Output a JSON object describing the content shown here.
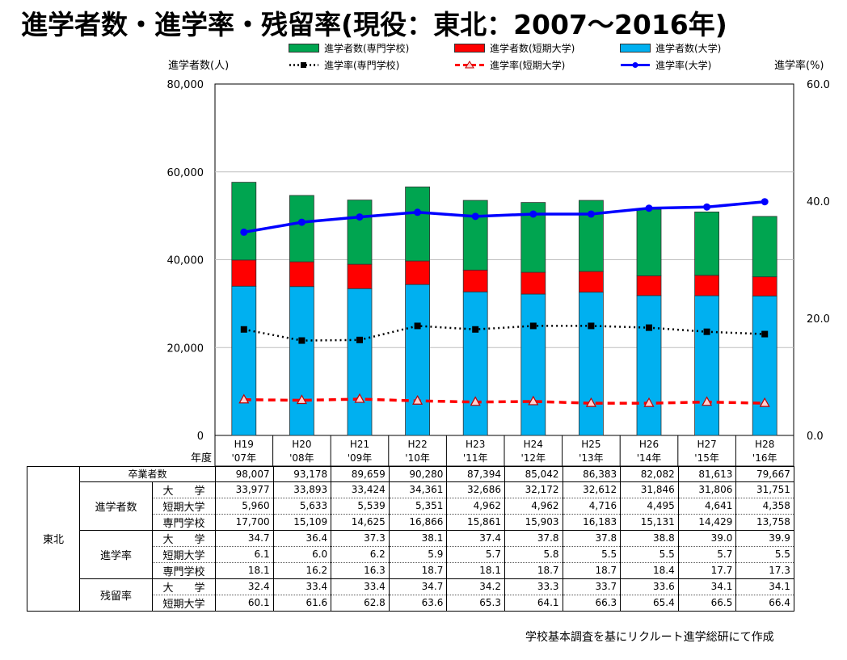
{
  "title": "進学者数・進学率・残留率(現役：東北：2007～2016年)",
  "y_left_label": "進学者数(人)",
  "y_right_label": "進学率(%)",
  "year_label": "年度",
  "legend": [
    {
      "label": "進学者数(専門学校)",
      "kind": "bar",
      "color": "#00a550"
    },
    {
      "label": "進学者数(短期大学)",
      "kind": "bar",
      "color": "#ff0000"
    },
    {
      "label": "進学者数(大学)",
      "kind": "bar",
      "color": "#00b0f0"
    },
    {
      "label": "進学率(専門学校)",
      "kind": "dotted-line",
      "color": "#000000"
    },
    {
      "label": "進学率(短期大学)",
      "kind": "dashed-line",
      "color": "#ff0000"
    },
    {
      "label": "進学率(大学)",
      "kind": "solid-line",
      "color": "#0000ff"
    }
  ],
  "chart_data": {
    "type": "bar",
    "stacked": true,
    "categories": [
      "H19 '07年",
      "H20 '08年",
      "H21 '09年",
      "H22 '10年",
      "H23 '11年",
      "H24 '12年",
      "H25 '13年",
      "H26 '14年",
      "H27 '15年",
      "H28 '16年"
    ],
    "category_top": [
      "H19",
      "H20",
      "H21",
      "H22",
      "H23",
      "H24",
      "H25",
      "H26",
      "H27",
      "H28"
    ],
    "category_bottom": [
      "'07年",
      "'08年",
      "'09年",
      "'10年",
      "'11年",
      "'12年",
      "'13年",
      "'14年",
      "'15年",
      "'16年"
    ],
    "series": [
      {
        "name": "進学者数(大学)",
        "type": "bar",
        "axis": "left",
        "color": "#00b0f0",
        "values": [
          33977,
          33893,
          33424,
          34361,
          32686,
          32172,
          32612,
          31846,
          31806,
          31751
        ]
      },
      {
        "name": "進学者数(短期大学)",
        "type": "bar",
        "axis": "left",
        "color": "#ff0000",
        "values": [
          5960,
          5633,
          5539,
          5351,
          4962,
          4962,
          4716,
          4495,
          4641,
          4358
        ]
      },
      {
        "name": "進学者数(専門学校)",
        "type": "bar",
        "axis": "left",
        "color": "#00a550",
        "values": [
          17700,
          15109,
          14625,
          16866,
          15861,
          15903,
          16183,
          15131,
          14429,
          13758
        ]
      },
      {
        "name": "進学率(大学)",
        "type": "line",
        "axis": "right",
        "color": "#0000ff",
        "values": [
          34.7,
          36.4,
          37.3,
          38.1,
          37.4,
          37.8,
          37.8,
          38.8,
          39.0,
          39.9
        ]
      },
      {
        "name": "進学率(短期大学)",
        "type": "line",
        "axis": "right",
        "color": "#ff0000",
        "values": [
          6.1,
          6.0,
          6.2,
          5.9,
          5.7,
          5.8,
          5.5,
          5.5,
          5.7,
          5.5
        ]
      },
      {
        "name": "進学率(専門学校)",
        "type": "line",
        "axis": "right",
        "color": "#000000",
        "values": [
          18.1,
          16.2,
          16.3,
          18.7,
          18.1,
          18.7,
          18.7,
          18.4,
          17.7,
          17.3
        ]
      }
    ],
    "ylim_left": [
      0,
      80000
    ],
    "ylim_right": [
      0,
      60
    ],
    "yticks_left": [
      "0",
      "20,000",
      "40,000",
      "60,000",
      "80,000"
    ],
    "yticks_right": [
      "0.0",
      "20.0",
      "40.0",
      "60.0"
    ],
    "grid": true,
    "legend_position": "top"
  },
  "table": {
    "region": "東北",
    "graduates_label": "卒業者数",
    "graduates": [
      "98,007",
      "93,178",
      "89,659",
      "90,280",
      "87,394",
      "85,042",
      "86,383",
      "82,082",
      "81,613",
      "79,667"
    ],
    "groups": [
      {
        "label": "進学者数",
        "rows": [
          {
            "label": "大　　学",
            "values": [
              "33,977",
              "33,893",
              "33,424",
              "34,361",
              "32,686",
              "32,172",
              "32,612",
              "31,846",
              "31,806",
              "31,751"
            ]
          },
          {
            "label": "短期大学",
            "values": [
              "5,960",
              "5,633",
              "5,539",
              "5,351",
              "4,962",
              "4,962",
              "4,716",
              "4,495",
              "4,641",
              "4,358"
            ]
          },
          {
            "label": "専門学校",
            "values": [
              "17,700",
              "15,109",
              "14,625",
              "16,866",
              "15,861",
              "15,903",
              "16,183",
              "15,131",
              "14,429",
              "13,758"
            ]
          }
        ]
      },
      {
        "label": "進学率",
        "rows": [
          {
            "label": "大　　学",
            "values": [
              "34.7",
              "36.4",
              "37.3",
              "38.1",
              "37.4",
              "37.8",
              "37.8",
              "38.8",
              "39.0",
              "39.9"
            ]
          },
          {
            "label": "短期大学",
            "values": [
              "6.1",
              "6.0",
              "6.2",
              "5.9",
              "5.7",
              "5.8",
              "5.5",
              "5.5",
              "5.7",
              "5.5"
            ]
          },
          {
            "label": "専門学校",
            "values": [
              "18.1",
              "16.2",
              "16.3",
              "18.7",
              "18.1",
              "18.7",
              "18.7",
              "18.4",
              "17.7",
              "17.3"
            ]
          }
        ]
      },
      {
        "label": "残留率",
        "rows": [
          {
            "label": "大　　学",
            "values": [
              "32.4",
              "33.4",
              "33.4",
              "34.7",
              "34.2",
              "33.3",
              "33.7",
              "33.6",
              "34.1",
              "34.1"
            ]
          },
          {
            "label": "短期大学",
            "values": [
              "60.1",
              "61.6",
              "62.8",
              "63.6",
              "65.3",
              "64.1",
              "66.3",
              "65.4",
              "66.5",
              "66.4"
            ]
          }
        ]
      }
    ]
  },
  "source_note": "学校基本調査を基にリクルート進学総研にて作成"
}
